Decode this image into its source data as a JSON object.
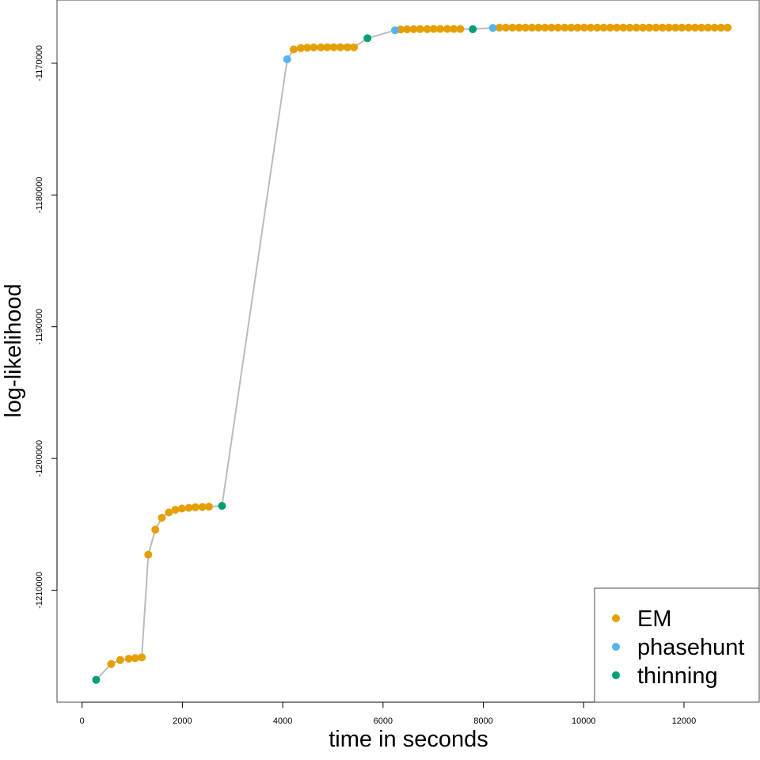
{
  "chart_data": {
    "type": "scatter",
    "xlabel": "time in seconds",
    "ylabel": "log-likelihood",
    "xlim": [
      -500,
      13500
    ],
    "ylim": [
      -1218500,
      -1165200
    ],
    "xticks": [
      0,
      2000,
      4000,
      6000,
      8000,
      10000,
      12000
    ],
    "yticks": [
      -1170000,
      -1180000,
      -1190000,
      -1200000,
      -1210000
    ],
    "connect_points": true,
    "line_color": "#bbbbbb",
    "legend_position": "bottom-right",
    "series": [
      {
        "name": "EM",
        "color": "#E69F00",
        "x": [
          580,
          760,
          930,
          1060,
          1190,
          1320,
          1460,
          1590,
          1730,
          1860,
          1990,
          2130,
          2260,
          2400,
          2530,
          4220,
          4360,
          4490,
          4620,
          4760,
          4890,
          5020,
          5150,
          5290,
          5420,
          6350,
          6480,
          6610,
          6740,
          6880,
          7010,
          7140,
          7280,
          7410,
          7540,
          8320,
          8450,
          8580,
          8710,
          8840,
          8970,
          9100,
          9230,
          9360,
          9490,
          9620,
          9750,
          9880,
          10010,
          10140,
          10270,
          10400,
          10530,
          10660,
          10790,
          10920,
          11050,
          11180,
          11310,
          11440,
          11570,
          11700,
          11830,
          11960,
          12090,
          12220,
          12350,
          12480,
          12610,
          12740,
          12870
        ],
        "y": [
          -1215600,
          -1215300,
          -1215200,
          -1215150,
          -1215100,
          -1207300,
          -1205400,
          -1204500,
          -1204100,
          -1203900,
          -1203800,
          -1203750,
          -1203700,
          -1203680,
          -1203660,
          -1168950,
          -1168850,
          -1168820,
          -1168800,
          -1168800,
          -1168790,
          -1168790,
          -1168790,
          -1168790,
          -1168790,
          -1167450,
          -1167430,
          -1167420,
          -1167410,
          -1167410,
          -1167400,
          -1167400,
          -1167400,
          -1167400,
          -1167400,
          -1167300,
          -1167300,
          -1167300,
          -1167300,
          -1167300,
          -1167300,
          -1167300,
          -1167300,
          -1167300,
          -1167300,
          -1167300,
          -1167300,
          -1167300,
          -1167300,
          -1167300,
          -1167300,
          -1167300,
          -1167300,
          -1167300,
          -1167300,
          -1167300,
          -1167300,
          -1167300,
          -1167300,
          -1167300,
          -1167300,
          -1167300,
          -1167300,
          -1167300,
          -1167300,
          -1167300,
          -1167300,
          -1167300,
          -1167300,
          -1167300,
          -1167300
        ]
      },
      {
        "name": "phasehunt",
        "color": "#56B4E9",
        "x": [
          4090,
          6240,
          8190
        ],
        "y": [
          -1169700,
          -1167500,
          -1167320
        ]
      },
      {
        "name": "thinning",
        "color": "#009E73",
        "x": [
          280,
          2790,
          5690,
          7790
        ],
        "y": [
          -1216800,
          -1203600,
          -1168100,
          -1167420
        ]
      }
    ]
  }
}
